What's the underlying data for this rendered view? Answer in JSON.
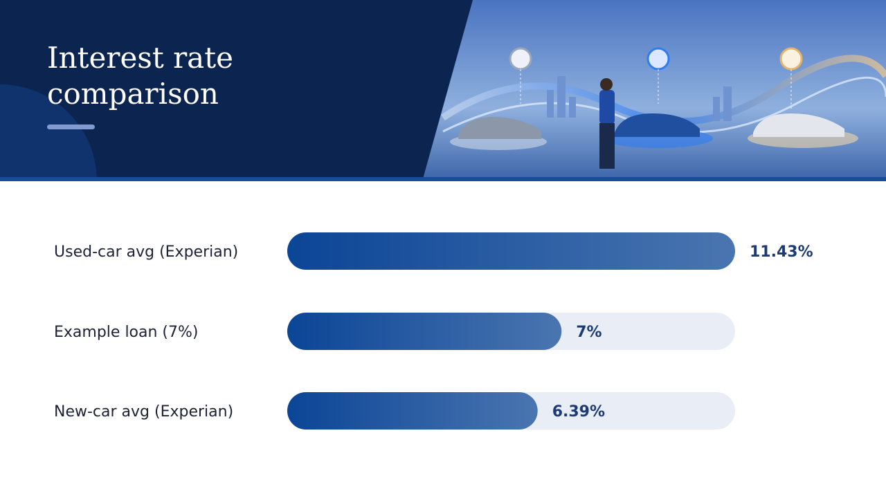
{
  "chart_data": {
    "type": "bar",
    "orientation": "horizontal",
    "title": "Interest rate comparison",
    "categories": [
      "Used-car avg (Experian)",
      "Example loan (7%)",
      "New-car avg (Experian)"
    ],
    "values": [
      11.43,
      7,
      6.39
    ],
    "value_labels": [
      "11.43%",
      "7%",
      "6.39%"
    ],
    "xlim": [
      0,
      11.43
    ],
    "color": "#1d4f9c",
    "track_color": "#e9eef6"
  }
}
